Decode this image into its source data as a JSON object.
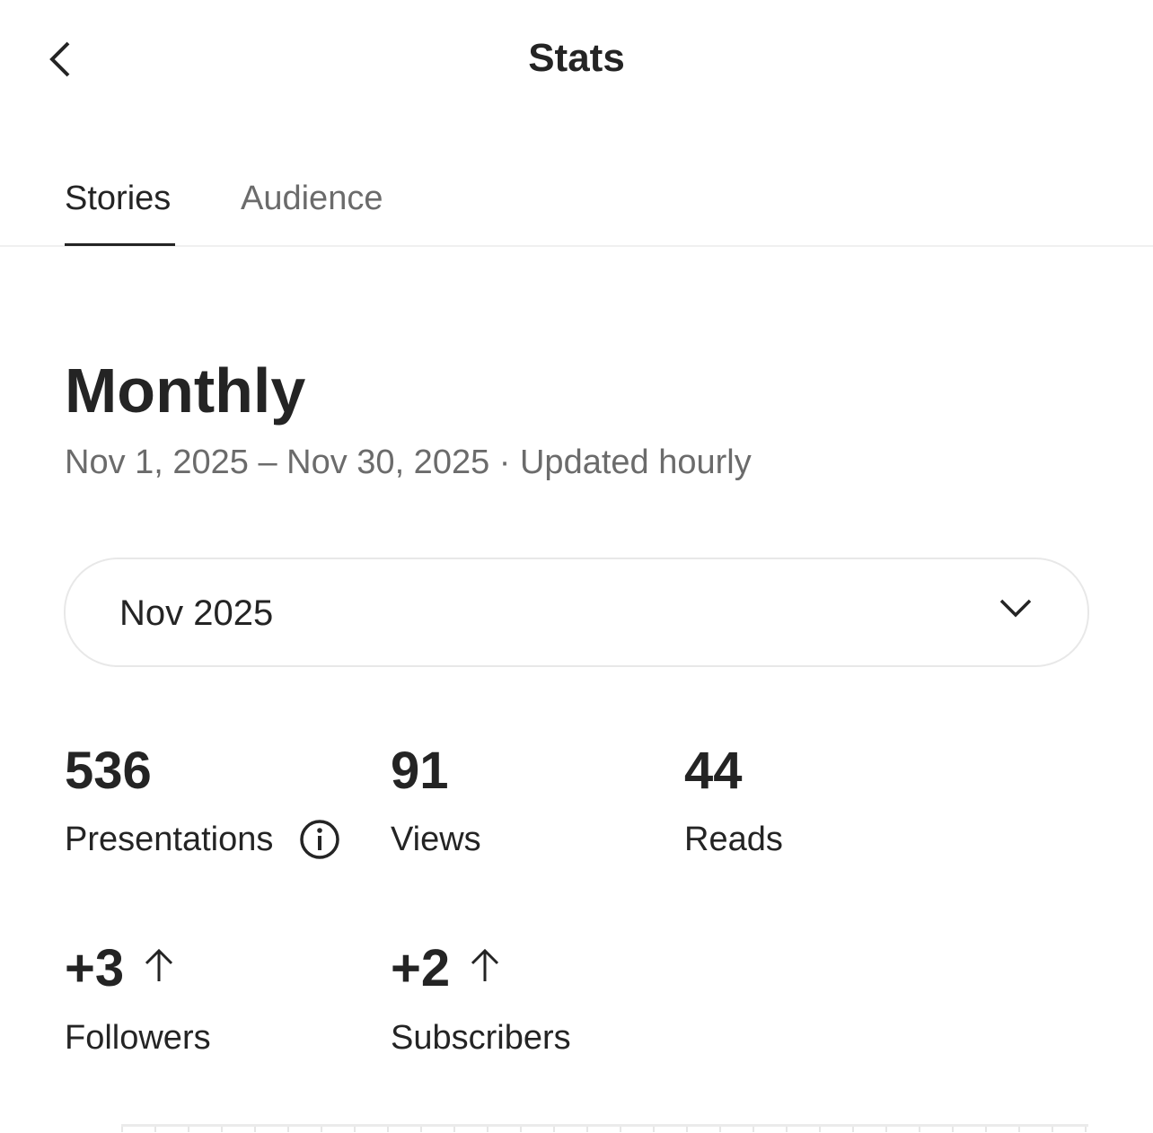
{
  "header": {
    "title": "Stats",
    "back_icon": "chevron-left-icon"
  },
  "tabs": [
    {
      "label": "Stories",
      "active": true
    },
    {
      "label": "Audience",
      "active": false
    }
  ],
  "section": {
    "heading": "Monthly",
    "subtitle": "Nov 1, 2025 – Nov 30, 2025 · Updated hourly"
  },
  "period_select": {
    "value": "Nov 2025",
    "icon": "chevron-down-icon"
  },
  "stats": [
    {
      "value": "536",
      "label": "Presentations",
      "icon": "info-icon"
    },
    {
      "value": "91",
      "label": "Views"
    },
    {
      "value": "44",
      "label": "Reads"
    },
    {
      "value": "+3",
      "label": "Followers",
      "icon": "arrow-up-icon"
    },
    {
      "value": "+2",
      "label": "Subscribers",
      "icon": "arrow-up-icon"
    }
  ]
}
